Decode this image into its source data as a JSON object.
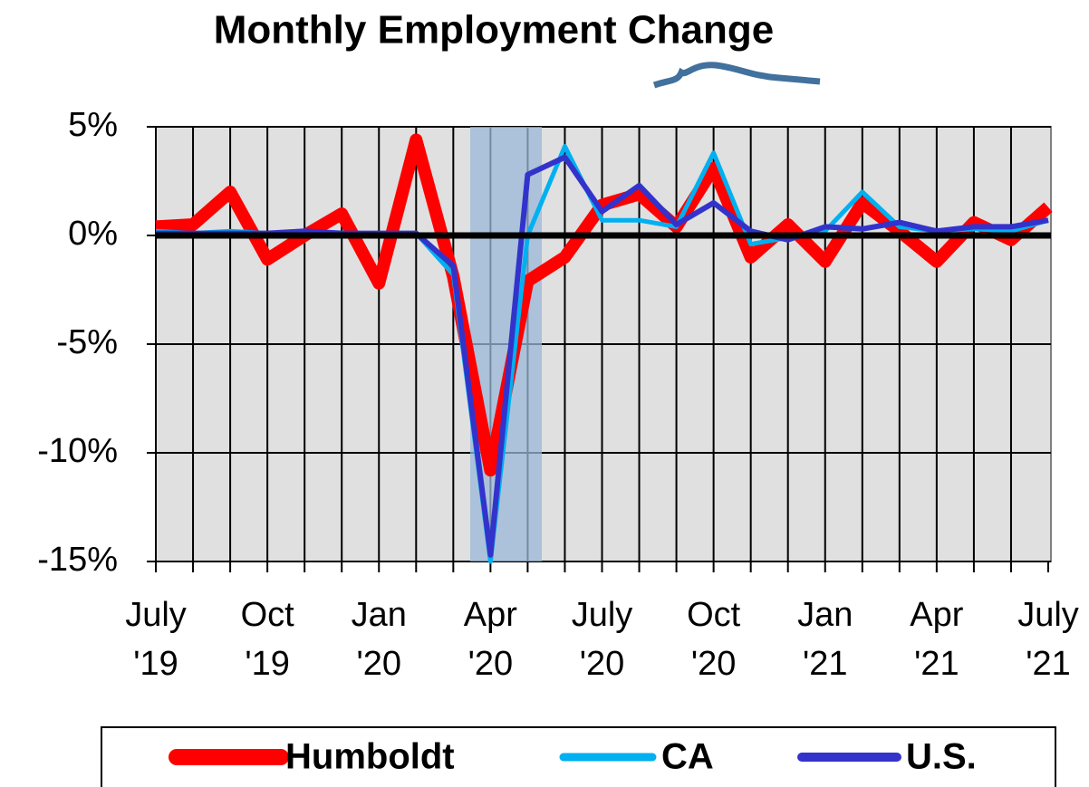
{
  "chart_data": {
    "type": "line",
    "title": "Monthly Employment Change",
    "categories": [
      "July\n'19",
      null,
      null,
      "Oct\n'19",
      null,
      null,
      "Jan\n'20",
      null,
      null,
      "Apr\n'20",
      null,
      null,
      "July\n'20",
      null,
      null,
      "Oct\n'20",
      null,
      null,
      "Jan\n'21",
      null,
      null,
      "Apr\n'21",
      null,
      null,
      "July\n'21"
    ],
    "series": [
      {
        "name": "Humboldt",
        "color": "#ff0000",
        "values": [
          0.4,
          0.5,
          2.0,
          -1.1,
          0.0,
          1.0,
          -2.2,
          4.4,
          -1.9,
          -10.8,
          -2.1,
          -1.0,
          1.4,
          1.9,
          0.4,
          3.1,
          -1.0,
          0.5,
          -1.2,
          1.5,
          0.2,
          -1.2,
          0.6,
          -0.2,
          1.3
        ]
      },
      {
        "name": "CA",
        "color": "#00b0f0",
        "values": [
          0.2,
          0.1,
          0.2,
          0.1,
          0.1,
          0.1,
          0.0,
          0.1,
          -1.8,
          -15.0,
          0.0,
          4.1,
          0.7,
          0.7,
          0.4,
          3.8,
          -0.4,
          -0.1,
          0.2,
          2.0,
          0.4,
          0.2,
          0.3,
          0.2,
          0.7
        ]
      },
      {
        "name": "U.S.",
        "color": "#3333cc",
        "values": [
          0.1,
          0.1,
          0.1,
          0.1,
          0.2,
          0.1,
          0.1,
          0.1,
          -1.4,
          -14.7,
          2.8,
          3.6,
          1.1,
          2.3,
          0.5,
          1.5,
          0.2,
          -0.2,
          0.4,
          0.3,
          0.6,
          0.2,
          0.4,
          0.4,
          0.7
        ]
      }
    ],
    "ylim": [
      -15,
      5
    ],
    "yticks": [
      {
        "value": 5,
        "label": "5%"
      },
      {
        "value": 0,
        "label": "0%"
      },
      {
        "value": -5,
        "label": "-5%"
      },
      {
        "value": -10,
        "label": "-10%"
      },
      {
        "value": -15,
        "label": "-15%"
      }
    ],
    "grid": true,
    "legend": "bottom"
  }
}
